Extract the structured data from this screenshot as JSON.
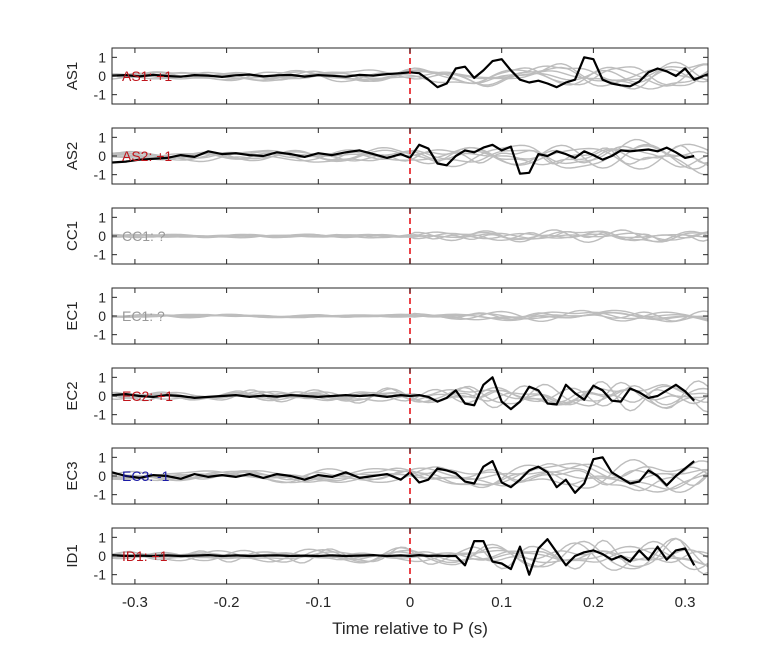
{
  "chart_data": {
    "type": "line",
    "xlabel": "Time relative to P (s)",
    "xlim": [
      -0.325,
      0.325
    ],
    "x_ticks": [
      -0.3,
      -0.2,
      -0.1,
      0,
      0.1,
      0.2,
      0.3
    ],
    "x_tick_labels": [
      "-0.3",
      "-0.2",
      "-0.1",
      "0",
      "0.1",
      "0.2",
      "0.3"
    ],
    "ylim": [
      -1.5,
      1.5
    ],
    "y_ticks": [
      1,
      0,
      -1
    ],
    "y_tick_labels": [
      "1",
      "0",
      "-1"
    ],
    "marker_line": {
      "x": 0,
      "color": "#e8141b",
      "style": "dashed"
    },
    "panels": [
      {
        "ylabel": "AS1",
        "annotation": "AS1: +1",
        "annotation_color": "#c0141b",
        "trace": {
          "x": [
            -0.325,
            -0.31,
            -0.295,
            -0.28,
            -0.265,
            -0.25,
            -0.235,
            -0.22,
            -0.205,
            -0.19,
            -0.175,
            -0.16,
            -0.145,
            -0.13,
            -0.115,
            -0.1,
            -0.085,
            -0.07,
            -0.055,
            -0.04,
            -0.025,
            -0.01,
            0,
            0.01,
            0.02,
            0.03,
            0.04,
            0.05,
            0.06,
            0.07,
            0.08,
            0.09,
            0.1,
            0.11,
            0.12,
            0.13,
            0.14,
            0.15,
            0.16,
            0.17,
            0.18,
            0.19,
            0.2,
            0.21,
            0.22,
            0.23,
            0.24,
            0.25,
            0.26,
            0.27,
            0.28,
            0.29,
            0.3,
            0.31,
            0.325
          ],
          "y": [
            0.02,
            0.05,
            -0.02,
            0.06,
            0.0,
            -0.04,
            0.05,
            0.02,
            -0.05,
            0.04,
            0.08,
            -0.02,
            0.03,
            0.06,
            -0.03,
            0.05,
            0.01,
            -0.04,
            0.06,
            0.02,
            0.1,
            0.15,
            0.2,
            0.15,
            -0.2,
            -0.6,
            -0.4,
            0.4,
            0.5,
            -0.1,
            0.3,
            0.8,
            0.9,
            0.3,
            -0.2,
            -0.35,
            -0.25,
            -0.4,
            -0.6,
            -0.35,
            -0.2,
            1.0,
            0.9,
            -0.2,
            -0.4,
            -0.5,
            -0.55,
            -0.3,
            0.2,
            0.4,
            0.25,
            0.0,
            0.4,
            -0.2,
            0.1
          ]
        }
      },
      {
        "ylabel": "AS2",
        "annotation": "AS2: +1",
        "annotation_color": "#c0141b",
        "trace": {
          "x": [
            -0.325,
            -0.31,
            -0.295,
            -0.28,
            -0.265,
            -0.25,
            -0.235,
            -0.22,
            -0.205,
            -0.19,
            -0.175,
            -0.16,
            -0.145,
            -0.13,
            -0.115,
            -0.1,
            -0.085,
            -0.07,
            -0.055,
            -0.04,
            -0.025,
            -0.01,
            0,
            0.01,
            0.02,
            0.03,
            0.04,
            0.05,
            0.06,
            0.07,
            0.08,
            0.09,
            0.1,
            0.11,
            0.12,
            0.13,
            0.14,
            0.15,
            0.16,
            0.17,
            0.18,
            0.19,
            0.2,
            0.21,
            0.22,
            0.23,
            0.24,
            0.25,
            0.26,
            0.27,
            0.28,
            0.29,
            0.3,
            0.31
          ],
          "y": [
            -0.35,
            -0.3,
            -0.2,
            -0.15,
            -0.1,
            0.05,
            -0.05,
            0.25,
            0.1,
            0.15,
            0.05,
            0.0,
            0.2,
            0.1,
            -0.05,
            0.15,
            0.05,
            0.2,
            0.3,
            0.1,
            -0.1,
            0.1,
            -0.1,
            0.6,
            0.4,
            -0.4,
            -0.5,
            0.0,
            0.3,
            0.2,
            0.45,
            0.6,
            0.3,
            0.5,
            -0.95,
            -0.9,
            0.1,
            0.0,
            0.25,
            0.1,
            -0.1,
            0.25,
            0.05,
            -0.2,
            0.0,
            0.3,
            0.25,
            0.3,
            0.35,
            0.25,
            0.45,
            0.2,
            -0.1,
            0.0
          ]
        }
      },
      {
        "ylabel": "CC1",
        "annotation": "CC1: ?",
        "annotation_color": "#999999",
        "trace": null
      },
      {
        "ylabel": "EC1",
        "annotation": "EC1: ?",
        "annotation_color": "#999999",
        "trace": null
      },
      {
        "ylabel": "EC2",
        "annotation": "EC2: +1",
        "annotation_color": "#c0141b",
        "trace": {
          "x": [
            -0.325,
            -0.31,
            -0.295,
            -0.28,
            -0.265,
            -0.25,
            -0.235,
            -0.22,
            -0.205,
            -0.19,
            -0.175,
            -0.16,
            -0.145,
            -0.13,
            -0.115,
            -0.1,
            -0.085,
            -0.07,
            -0.055,
            -0.04,
            -0.025,
            -0.01,
            0,
            0.01,
            0.02,
            0.03,
            0.04,
            0.05,
            0.06,
            0.07,
            0.08,
            0.09,
            0.1,
            0.11,
            0.12,
            0.13,
            0.14,
            0.15,
            0.16,
            0.17,
            0.18,
            0.19,
            0.2,
            0.21,
            0.22,
            0.23,
            0.24,
            0.25,
            0.26,
            0.27,
            0.28,
            0.29,
            0.3,
            0.31
          ],
          "y": [
            0.05,
            0.1,
            0.0,
            -0.05,
            0.05,
            0.0,
            -0.1,
            -0.05,
            0.0,
            0.05,
            -0.05,
            0.02,
            -0.03,
            0.05,
            0.0,
            -0.05,
            0.0,
            0.05,
            0.0,
            0.05,
            -0.05,
            0.05,
            0.0,
            0.05,
            -0.05,
            -0.3,
            -0.1,
            0.3,
            -0.4,
            -0.5,
            0.6,
            1.0,
            -0.3,
            -0.7,
            -0.3,
            0.5,
            0.3,
            -0.4,
            -0.45,
            0.6,
            0.15,
            -0.2,
            0.55,
            0.3,
            -0.25,
            -0.3,
            0.4,
            0.2,
            -0.1,
            0.0,
            0.3,
            0.6,
            0.25,
            -0.25
          ]
        }
      },
      {
        "ylabel": "EC3",
        "annotation": "EC3: -1",
        "annotation_color": "#1a1aa6",
        "trace": {
          "x": [
            -0.325,
            -0.31,
            -0.295,
            -0.28,
            -0.265,
            -0.25,
            -0.235,
            -0.22,
            -0.205,
            -0.19,
            -0.175,
            -0.16,
            -0.145,
            -0.13,
            -0.115,
            -0.1,
            -0.085,
            -0.07,
            -0.055,
            -0.04,
            -0.025,
            -0.01,
            0,
            0.01,
            0.02,
            0.03,
            0.04,
            0.05,
            0.06,
            0.07,
            0.08,
            0.09,
            0.1,
            0.11,
            0.12,
            0.13,
            0.14,
            0.15,
            0.16,
            0.17,
            0.18,
            0.19,
            0.2,
            0.21,
            0.22,
            0.23,
            0.24,
            0.25,
            0.26,
            0.27,
            0.28,
            0.29,
            0.3,
            0.31
          ],
          "y": [
            0.2,
            0.0,
            -0.1,
            0.05,
            0.0,
            -0.15,
            0.1,
            -0.05,
            0.05,
            -0.05,
            0.1,
            -0.1,
            0.1,
            0.0,
            -0.2,
            0.05,
            -0.05,
            0.2,
            -0.1,
            0.0,
            0.1,
            -0.2,
            0.2,
            -0.35,
            -0.2,
            0.4,
            0.3,
            0.15,
            -0.3,
            -0.4,
            0.5,
            0.8,
            -0.35,
            -0.6,
            -0.2,
            0.3,
            0.5,
            0.2,
            -0.6,
            -0.2,
            -0.9,
            -0.4,
            0.9,
            1.0,
            0.2,
            -0.1,
            -0.4,
            -0.3,
            0.3,
            0.0,
            -0.5,
            0.0,
            0.4,
            0.8
          ]
        }
      },
      {
        "ylabel": "ID1",
        "annotation": "ID1: +1",
        "annotation_color": "#c0141b",
        "trace": {
          "x": [
            -0.325,
            -0.31,
            -0.295,
            -0.28,
            -0.265,
            -0.25,
            -0.235,
            -0.22,
            -0.205,
            -0.19,
            -0.175,
            -0.16,
            -0.145,
            -0.13,
            -0.115,
            -0.1,
            -0.085,
            -0.07,
            -0.055,
            -0.04,
            -0.025,
            -0.01,
            0,
            0.01,
            0.02,
            0.03,
            0.04,
            0.05,
            0.06,
            0.07,
            0.08,
            0.09,
            0.1,
            0.11,
            0.12,
            0.13,
            0.14,
            0.15,
            0.16,
            0.17,
            0.18,
            0.19,
            0.2,
            0.21,
            0.22,
            0.23,
            0.24,
            0.25,
            0.26,
            0.27,
            0.28,
            0.29,
            0.3,
            0.31
          ],
          "y": [
            0.05,
            0.0,
            0.02,
            0.0,
            0.03,
            0.0,
            0.02,
            0.05,
            0.0,
            0.03,
            0.0,
            0.02,
            0.03,
            0.0,
            0.02,
            0.0,
            0.03,
            0.0,
            0.02,
            0.05,
            0.0,
            0.03,
            0.0,
            0.05,
            0.0,
            0.02,
            0.0,
            0.0,
            -0.5,
            0.8,
            0.8,
            -0.3,
            -0.4,
            -0.7,
            0.5,
            -1.0,
            0.4,
            0.9,
            0.2,
            -0.5,
            0.0,
            0.2,
            0.3,
            0.1,
            -0.2,
            0.0,
            -0.3,
            0.3,
            -0.2,
            0.5,
            -0.2,
            0.3,
            0.4,
            -0.5
          ]
        }
      }
    ]
  }
}
